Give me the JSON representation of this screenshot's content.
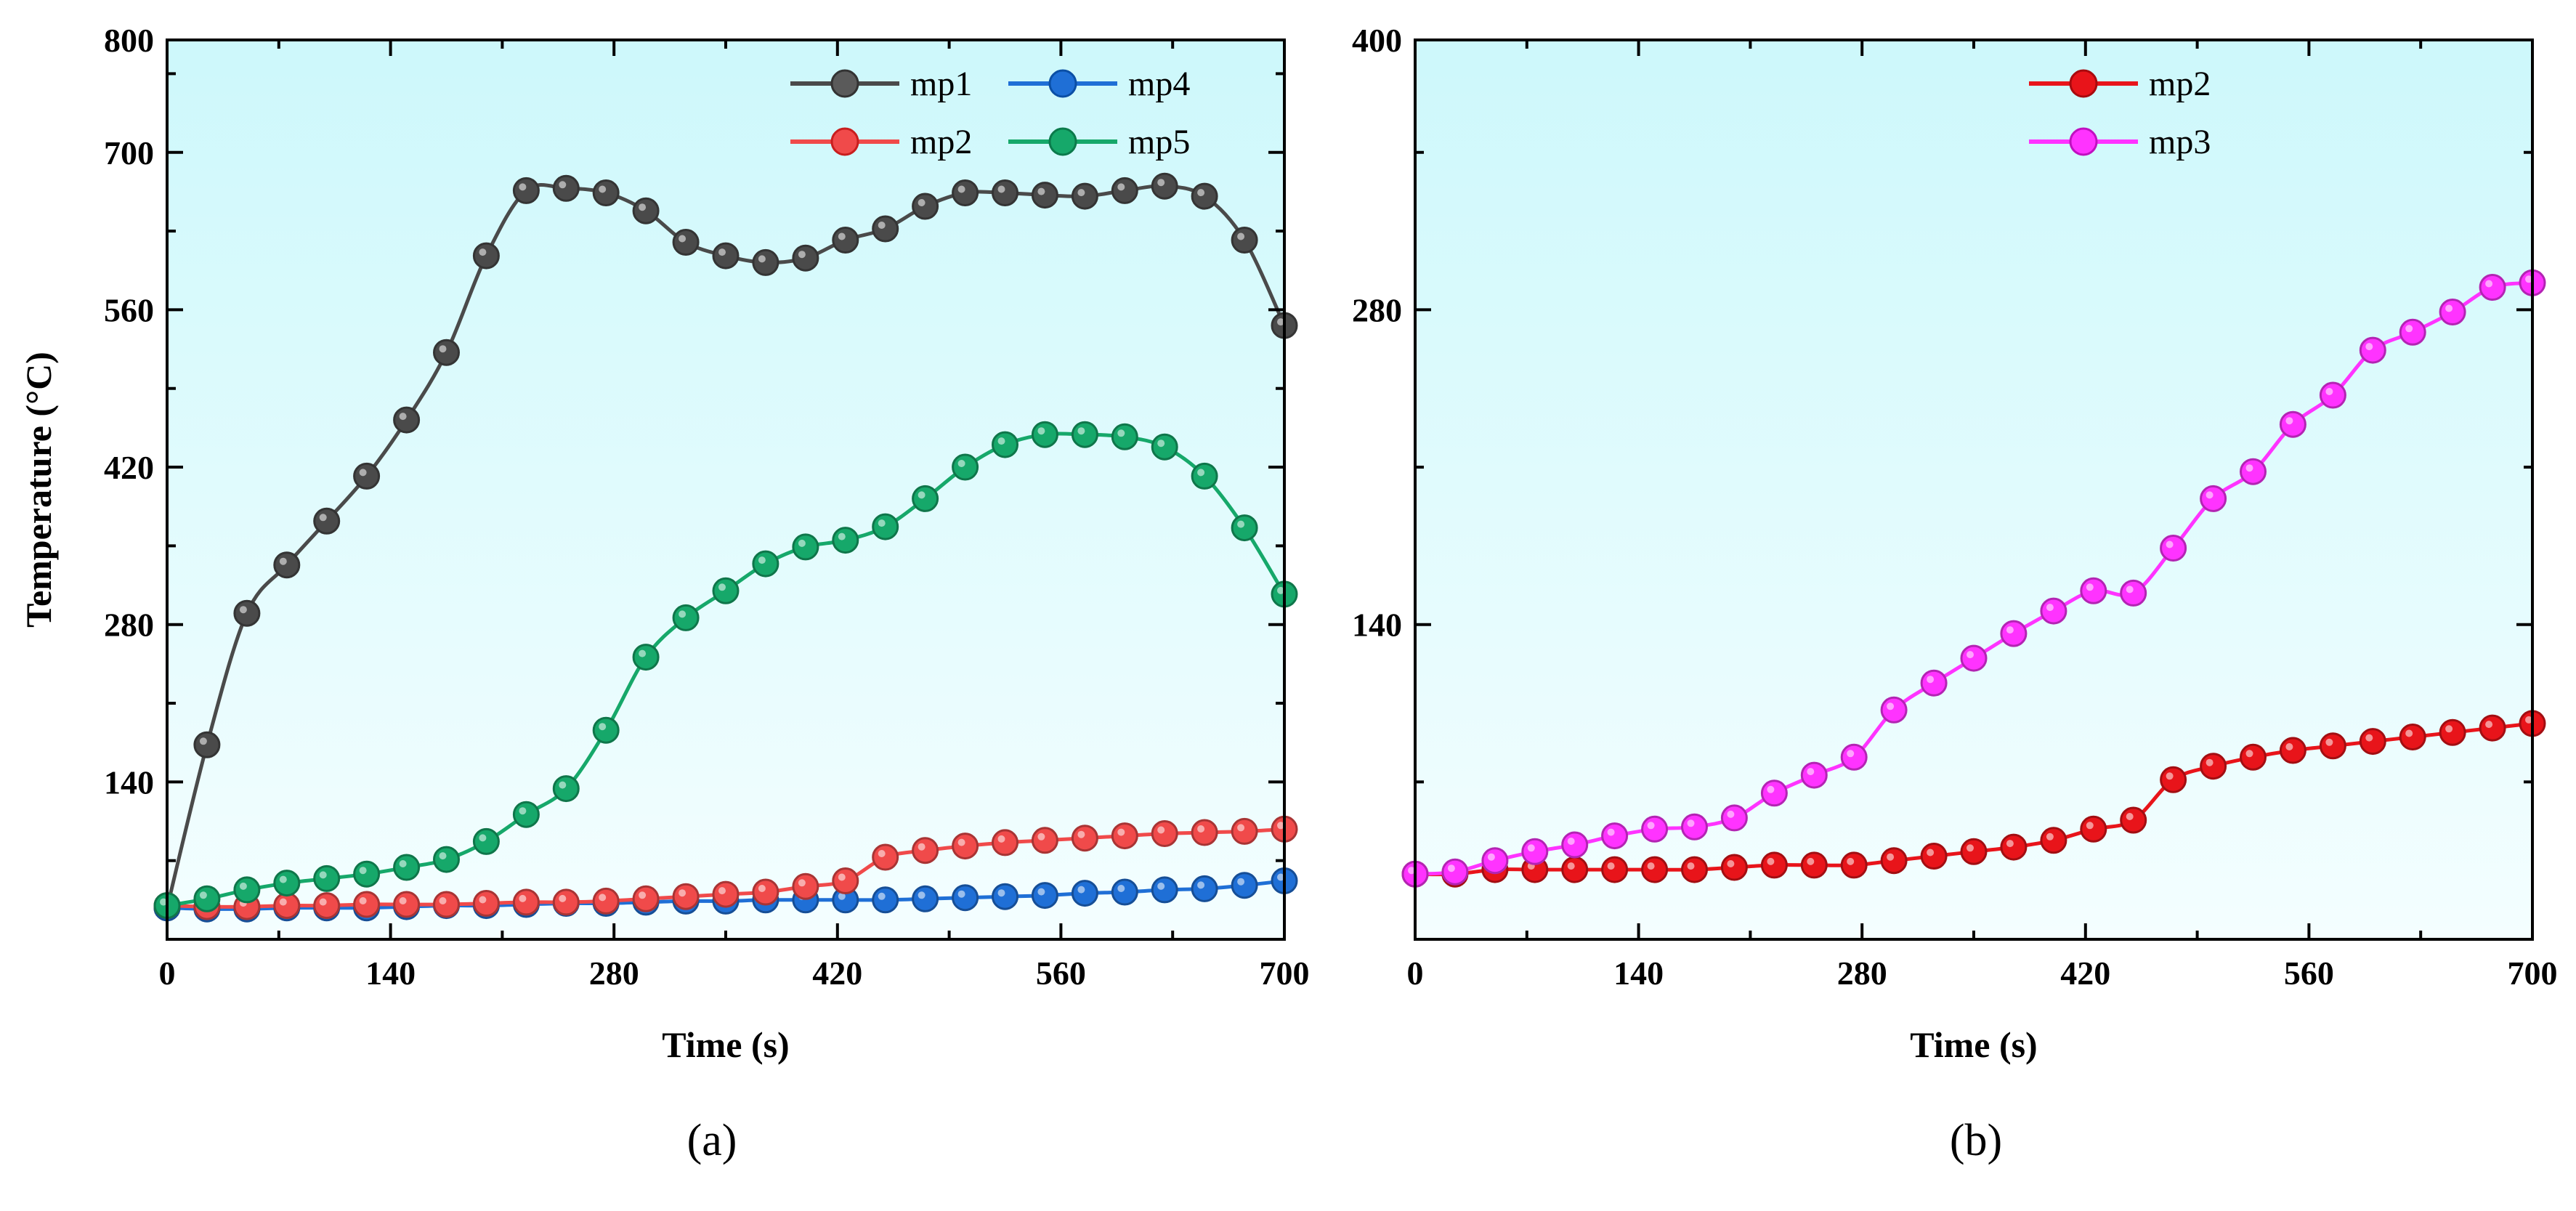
{
  "chart_data": [
    {
      "type": "line",
      "panel_label": "(a)",
      "xlabel": "Time (s)",
      "ylabel": "Temperature (°C)",
      "xlim": [
        0,
        700
      ],
      "ylim": [
        0,
        800
      ],
      "x_ticks": [
        0,
        140,
        280,
        420,
        560,
        700
      ],
      "x_tick_labels": [
        "0",
        "140",
        "280",
        "420",
        "560",
        "700"
      ],
      "y_ticks": [
        140,
        280,
        420,
        560,
        700,
        800
      ],
      "y_tick_labels": [
        "140",
        "280",
        "420",
        "560",
        "700",
        "800"
      ],
      "grid": false,
      "legend_position": "top-right",
      "background": "gradient light cyan",
      "series": [
        {
          "name": "mp1",
          "color": "#4a4a4a",
          "x": [
            0,
            25,
            50,
            75,
            100,
            125,
            150,
            175,
            200,
            225,
            250,
            275,
            300,
            325,
            350,
            375,
            400,
            425,
            450,
            475,
            500,
            525,
            550,
            575,
            600,
            625,
            650,
            675,
            700
          ],
          "y": [
            28,
            173,
            290,
            333,
            372,
            412,
            462,
            522,
            608,
            666,
            668,
            664,
            648,
            620,
            608,
            602,
            606,
            622,
            632,
            652,
            664,
            664,
            662,
            661,
            666,
            670,
            661,
            622,
            546
          ]
        },
        {
          "name": "mp4",
          "color": "#1f6fd6",
          "x": [
            0,
            25,
            50,
            75,
            100,
            125,
            150,
            175,
            200,
            225,
            250,
            275,
            300,
            325,
            350,
            375,
            400,
            425,
            450,
            475,
            500,
            525,
            550,
            575,
            600,
            625,
            650,
            675,
            700
          ],
          "y": [
            28,
            27,
            27,
            28,
            28,
            28,
            29,
            30,
            30,
            31,
            32,
            32,
            33,
            34,
            34,
            35,
            35,
            35,
            35,
            36,
            37,
            38,
            39,
            41,
            42,
            44,
            45,
            48,
            52
          ]
        },
        {
          "name": "mp2",
          "color": "#f04a4a",
          "x": [
            0,
            25,
            50,
            75,
            100,
            125,
            150,
            175,
            200,
            225,
            250,
            275,
            300,
            325,
            350,
            375,
            400,
            425,
            450,
            475,
            500,
            525,
            550,
            575,
            600,
            625,
            650,
            675,
            700
          ],
          "y": [
            30,
            29,
            29,
            30,
            30,
            31,
            31,
            31,
            32,
            33,
            33,
            34,
            36,
            38,
            40,
            42,
            47,
            52,
            73,
            79,
            83,
            86,
            88,
            90,
            92,
            94,
            95,
            96,
            98
          ]
        },
        {
          "name": "mp5",
          "color": "#16a86a",
          "x": [
            0,
            25,
            50,
            75,
            100,
            125,
            150,
            175,
            200,
            225,
            250,
            275,
            300,
            325,
            350,
            375,
            400,
            425,
            450,
            475,
            500,
            525,
            550,
            575,
            600,
            625,
            650,
            675,
            700
          ],
          "y": [
            30,
            36,
            44,
            50,
            54,
            58,
            64,
            71,
            87,
            111,
            134,
            186,
            251,
            286,
            310,
            334,
            349,
            355,
            367,
            392,
            420,
            440,
            449,
            449,
            447,
            438,
            412,
            366,
            307
          ]
        }
      ]
    },
    {
      "type": "line",
      "panel_label": "(b)",
      "xlabel": "Time (s)",
      "ylabel": "",
      "xlim": [
        0,
        700
      ],
      "ylim": [
        0,
        400
      ],
      "x_ticks": [
        0,
        140,
        280,
        420,
        560,
        700
      ],
      "x_tick_labels": [
        "0",
        "140",
        "280",
        "420",
        "560",
        "700"
      ],
      "y_ticks": [
        140,
        280,
        400
      ],
      "y_tick_labels": [
        "140",
        "280",
        "400"
      ],
      "grid": false,
      "legend_position": "top-center",
      "background": "gradient light cyan",
      "series": [
        {
          "name": "mp2",
          "color": "#e8141a",
          "x": [
            0,
            25,
            50,
            75,
            100,
            125,
            150,
            175,
            200,
            225,
            250,
            275,
            300,
            325,
            350,
            375,
            400,
            425,
            450,
            475,
            500,
            525,
            550,
            575,
            600,
            625,
            650,
            675,
            700
          ],
          "y": [
            29,
            29,
            31,
            31,
            31,
            31,
            31,
            31,
            32,
            33,
            33,
            33,
            35,
            37,
            39,
            41,
            44,
            49,
            53,
            71,
            77,
            81,
            84,
            86,
            88,
            90,
            92,
            94,
            96
          ]
        },
        {
          "name": "mp3",
          "color": "#ff33ff",
          "x": [
            0,
            25,
            50,
            75,
            100,
            125,
            150,
            175,
            200,
            225,
            250,
            275,
            300,
            325,
            350,
            375,
            400,
            425,
            450,
            475,
            500,
            525,
            550,
            575,
            600,
            625,
            650,
            675,
            700
          ],
          "y": [
            29,
            30,
            35,
            39,
            42,
            46,
            49,
            50,
            54,
            65,
            73,
            81,
            102,
            114,
            125,
            136,
            146,
            155,
            154,
            174,
            196,
            208,
            229,
            242,
            262,
            270,
            279,
            290,
            292
          ]
        }
      ]
    }
  ]
}
